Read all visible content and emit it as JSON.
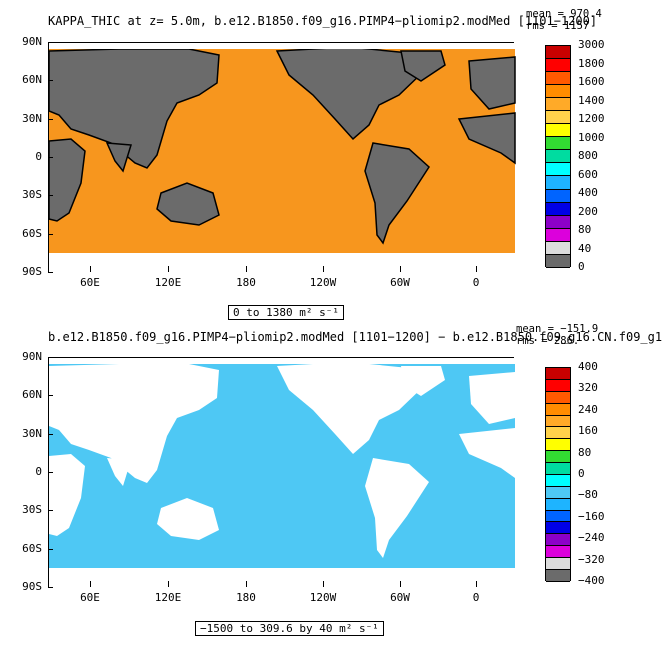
{
  "panel1": {
    "title": "KAPPA_THIC at z=   5.0m, b.e12.B1850.f09_g16.PIMP4−pliomip2.modMed [1101−1200]",
    "mean": "mean = 970.4",
    "rms": "rms = 1157",
    "range": "0 to 1380 m² s⁻¹",
    "ocean_color": "#f7961e",
    "land_color": "#6b6b6b",
    "colorbar": {
      "labels": [
        "3000",
        "1800",
        "1600",
        "1400",
        "1200",
        "1000",
        "800",
        "600",
        "400",
        "200",
        "80",
        "40",
        "0"
      ],
      "colors": [
        "#c80000",
        "#ff0000",
        "#ff5a00",
        "#ff8c00",
        "#ffaa28",
        "#ffd24b",
        "#ffff00",
        "#32dc32",
        "#00dca0",
        "#00ffff",
        "#1eb4ff",
        "#0064ff",
        "#0000e6",
        "#8c00c8",
        "#dc00dc",
        "#dcdcdc",
        "#6b6b6b"
      ]
    }
  },
  "panel2": {
    "title": "b.e12.B1850.f09_g16.PIMP4−pliomip2.modMed [1101−1200] − b.e12.B1850.f09_g16.CN.f09_g1",
    "mean": "mean = −151.9",
    "rms": "rms = 286.",
    "range": "−1500 to 309.6 by 40 m² s⁻¹",
    "ocean_color": "#4ec8f4",
    "land_color": "#ffffff",
    "colorbar": {
      "labels": [
        "400",
        "320",
        "240",
        "160",
        "80",
        "0",
        "−80",
        "−160",
        "−240",
        "−320",
        "−400"
      ],
      "colors": [
        "#c80000",
        "#ff0000",
        "#ff5a00",
        "#ff8c00",
        "#ffaa28",
        "#ffd24b",
        "#ffff00",
        "#32dc32",
        "#00dca0",
        "#00ffff",
        "#4ec8f4",
        "#1eb4ff",
        "#0064ff",
        "#0000e6",
        "#8c00c8",
        "#dc00dc",
        "#dcdcdc",
        "#6b6b6b"
      ]
    }
  },
  "axes": {
    "yticks": [
      "90N",
      "60N",
      "30N",
      "0",
      "30S",
      "60S",
      "90S"
    ],
    "xticks": [
      "60E",
      "120E",
      "180",
      "120W",
      "60W",
      "0"
    ]
  },
  "chart_data": [
    {
      "type": "heatmap",
      "title": "KAPPA_THIC at z=   5.0m, b.e12.B1850.f09_g16.PIMP4−pliomip2.modMed [1101−1200]",
      "units": "m² s⁻¹",
      "mean": 970.4,
      "rms": 1157,
      "min": 0,
      "max": 1380,
      "contour_levels": [
        0,
        40,
        80,
        200,
        400,
        600,
        800,
        1000,
        1200,
        1400,
        1600,
        1800,
        3000
      ],
      "xlim": [
        20,
        380
      ],
      "ylim": [
        -90,
        90
      ],
      "xticks": [
        "60E",
        "120E",
        "180",
        "120W",
        "60W",
        "0"
      ],
      "yticks": [
        "90N",
        "60N",
        "30N",
        "0",
        "30S",
        "60S",
        "90S"
      ]
    },
    {
      "type": "heatmap",
      "title": "b.e12.B1850.f09_g16.PIMP4−pliomip2.modMed [1101−1200] − b.e12.B1850.f09_g16.CN.f09_g1",
      "units": "m² s⁻¹",
      "mean": -151.9,
      "rms": 286,
      "min": -1500,
      "max": 309.6,
      "interval": 40,
      "contour_levels": [
        -400,
        -320,
        -240,
        -160,
        -80,
        0,
        80,
        160,
        240,
        320,
        400
      ],
      "xlim": [
        20,
        380
      ],
      "ylim": [
        -90,
        90
      ],
      "xticks": [
        "60E",
        "120E",
        "180",
        "120W",
        "60W",
        "0"
      ],
      "yticks": [
        "90N",
        "60N",
        "30N",
        "0",
        "30S",
        "60S",
        "90S"
      ]
    }
  ]
}
